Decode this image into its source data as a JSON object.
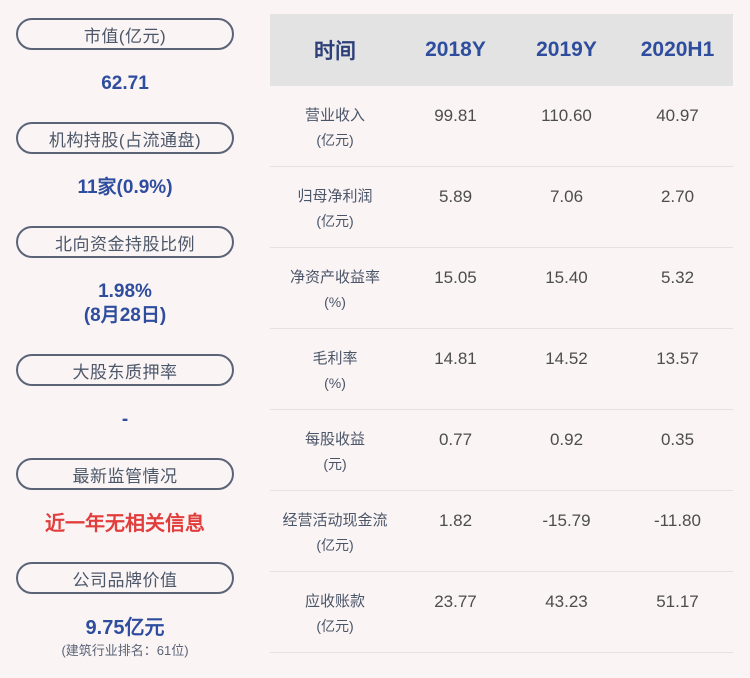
{
  "colors": {
    "background": "#faf4f4",
    "header_bg": "#e3e3e3",
    "accent_blue": "#2f4d9e",
    "header_navy": "#2c3f78",
    "alert_red": "#e23d3d",
    "pill_border": "#5b6477",
    "divider": "#e7e2e2",
    "body_text": "#4d4d4d"
  },
  "sidebar": {
    "items": [
      {
        "label": "市值(亿元)",
        "value": "62.71"
      },
      {
        "label": "机构持股(占流通盘)",
        "value": "11家(0.9%)"
      },
      {
        "label": "北向资金持股比例",
        "value": "1.98%",
        "value2": "(8月28日)"
      },
      {
        "label": "大股东质押率",
        "value": "-"
      },
      {
        "label": "最新监管情况",
        "value": "近一年无相关信息"
      },
      {
        "label": "公司品牌价值",
        "value": "9.75亿元",
        "caption": "(建筑行业排名：61位)"
      }
    ]
  },
  "table": {
    "header": [
      "时间",
      "2018Y",
      "2019Y",
      "2020H1"
    ],
    "rows": [
      {
        "name": "营业收入",
        "unit": "(亿元)",
        "values": [
          "99.81",
          "110.60",
          "40.97"
        ]
      },
      {
        "name": "归母净利润",
        "unit": "(亿元)",
        "values": [
          "5.89",
          "7.06",
          "2.70"
        ]
      },
      {
        "name": "净资产收益率",
        "unit": "(%)",
        "values": [
          "15.05",
          "15.40",
          "5.32"
        ]
      },
      {
        "name": "毛利率",
        "unit": "(%)",
        "values": [
          "14.81",
          "14.52",
          "13.57"
        ]
      },
      {
        "name": "每股收益",
        "unit": "(元)",
        "values": [
          "0.77",
          "0.92",
          "0.35"
        ]
      },
      {
        "name": "经营活动现金流",
        "unit": "(亿元)",
        "values": [
          "1.82",
          "-15.79",
          "-11.80"
        ]
      },
      {
        "name": "应收账款",
        "unit": "(亿元)",
        "values": [
          "23.77",
          "43.23",
          "51.17"
        ]
      }
    ]
  },
  "chart_data": {
    "type": "table",
    "title": "",
    "columns": [
      "时间",
      "2018Y",
      "2019Y",
      "2020H1"
    ],
    "rows": [
      {
        "metric": "营业收入(亿元)",
        "values": [
          99.81,
          110.6,
          40.97
        ]
      },
      {
        "metric": "归母净利润(亿元)",
        "values": [
          5.89,
          7.06,
          2.7
        ]
      },
      {
        "metric": "净资产收益率(%)",
        "values": [
          15.05,
          15.4,
          5.32
        ]
      },
      {
        "metric": "毛利率(%)",
        "values": [
          14.81,
          14.52,
          13.57
        ]
      },
      {
        "metric": "每股收益(元)",
        "values": [
          0.77,
          0.92,
          0.35
        ]
      },
      {
        "metric": "经营活动现金流(亿元)",
        "values": [
          1.82,
          -15.79,
          -11.8
        ]
      },
      {
        "metric": "应收账款(亿元)",
        "values": [
          23.77,
          43.23,
          51.17
        ]
      }
    ],
    "kpis": [
      {
        "label": "市值(亿元)",
        "value": "62.71"
      },
      {
        "label": "机构持股(占流通盘)",
        "value": "11家(0.9%)"
      },
      {
        "label": "北向资金持股比例",
        "value": "1.98%",
        "date": "(8月28日)"
      },
      {
        "label": "大股东质押率",
        "value": "-"
      },
      {
        "label": "最新监管情况",
        "value": "近一年无相关信息"
      },
      {
        "label": "公司品牌价值",
        "value": "9.75亿元",
        "note": "(建筑行业排名：61位)"
      }
    ]
  }
}
